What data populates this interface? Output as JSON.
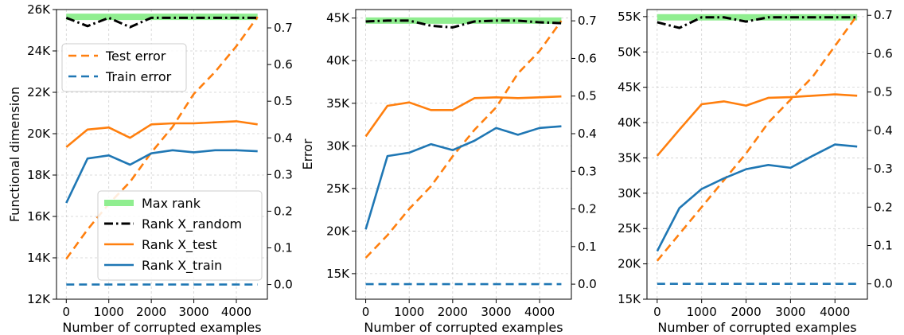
{
  "chart_data": [
    {
      "type": "line",
      "xlabel": "Number of corrupted examples",
      "ylabel": "Functional dimension",
      "ylabel_right": "Error",
      "x": [
        0,
        500,
        1000,
        1500,
        2000,
        2500,
        3000,
        3500,
        4000,
        4500
      ],
      "xticks": [
        0,
        1000,
        2000,
        3000,
        4000
      ],
      "ylim": [
        12000,
        26000
      ],
      "yticks": [
        12000,
        14000,
        16000,
        18000,
        20000,
        22000,
        24000,
        26000
      ],
      "ytick_labels": [
        "12K",
        "14K",
        "16K",
        "18K",
        "20K",
        "22K",
        "24K",
        "26K"
      ],
      "y2lim": [
        -0.04,
        0.75
      ],
      "y2ticks": [
        0.0,
        0.1,
        0.2,
        0.3,
        0.4,
        0.5,
        0.6,
        0.7
      ],
      "y2tick_labels": [
        "0.0",
        "0.1",
        "0.2",
        "0.3",
        "0.4",
        "0.5",
        "0.6",
        "0.7"
      ],
      "series": [
        {
          "name": "Max rank",
          "axis": "left",
          "style": "band",
          "color": "#90ee90",
          "values": [
            25650,
            25650,
            25650,
            25650,
            25650,
            25650,
            25650,
            25650,
            25650,
            25650
          ]
        },
        {
          "name": "Rank X_random",
          "axis": "left",
          "style": "dashdot",
          "color": "#000000",
          "values": [
            25600,
            25200,
            25600,
            25150,
            25600,
            25600,
            25600,
            25600,
            25600,
            25600
          ]
        },
        {
          "name": "Rank X_test",
          "axis": "left",
          "style": "solid",
          "color": "#ff7f0e",
          "values": [
            19350,
            20200,
            20300,
            19800,
            20450,
            20500,
            20500,
            20550,
            20600,
            20450
          ]
        },
        {
          "name": "Rank X_train",
          "axis": "left",
          "style": "solid",
          "color": "#1f77b4",
          "values": [
            16650,
            18800,
            18950,
            18500,
            19050,
            19200,
            19100,
            19200,
            19200,
            19150
          ]
        },
        {
          "name": "Test error",
          "axis": "right",
          "style": "dashed",
          "color": "#ff7f0e",
          "values": [
            0.07,
            0.15,
            0.22,
            0.28,
            0.36,
            0.43,
            0.52,
            0.58,
            0.65,
            0.73
          ]
        },
        {
          "name": "Train error",
          "axis": "right",
          "style": "dashed",
          "color": "#1f77b4",
          "values": [
            0.0,
            0.0,
            0.0,
            0.0,
            0.0,
            0.0,
            0.0,
            0.0,
            0.0,
            0.0
          ]
        }
      ],
      "legend_error": {
        "placement": "upper-left",
        "items": [
          "Test error",
          "Train error"
        ]
      },
      "legend_rank": {
        "placement": "lower-center",
        "items": [
          "Max rank",
          "Rank X_random",
          "Rank X_test",
          "Rank X_train"
        ]
      }
    },
    {
      "type": "line",
      "xlabel": "Number of corrupted examples",
      "ylabel": "",
      "ylabel_right": "",
      "x": [
        0,
        500,
        1000,
        1500,
        2000,
        2500,
        3000,
        3500,
        4000,
        4500
      ],
      "xticks": [
        0,
        1000,
        2000,
        3000,
        4000
      ],
      "ylim": [
        12000,
        46000
      ],
      "yticks": [
        15000,
        20000,
        25000,
        30000,
        35000,
        40000,
        45000
      ],
      "ytick_labels": [
        "15K",
        "20K",
        "25K",
        "30K",
        "35K",
        "40K",
        "45K"
      ],
      "y2lim": [
        -0.04,
        0.73
      ],
      "y2ticks": [
        0.0,
        0.1,
        0.2,
        0.3,
        0.4,
        0.5,
        0.6,
        0.7
      ],
      "y2tick_labels": [
        "0.0",
        "0.1",
        "0.2",
        "0.3",
        "0.4",
        "0.5",
        "0.6",
        "0.7"
      ],
      "series": [
        {
          "name": "Max rank",
          "axis": "left",
          "style": "band",
          "color": "#90ee90",
          "values": [
            44700,
            44700,
            44700,
            44700,
            44700,
            44700,
            44700,
            44700,
            44700,
            44700
          ]
        },
        {
          "name": "Rank X_random",
          "axis": "left",
          "style": "dashdot",
          "color": "#000000",
          "values": [
            44600,
            44700,
            44700,
            44100,
            43900,
            44600,
            44700,
            44700,
            44500,
            44400
          ]
        },
        {
          "name": "Rank X_test",
          "axis": "left",
          "style": "solid",
          "color": "#ff7f0e",
          "values": [
            31100,
            34700,
            35100,
            34200,
            34200,
            35600,
            35700,
            35600,
            35700,
            35800
          ]
        },
        {
          "name": "Rank X_train",
          "axis": "left",
          "style": "solid",
          "color": "#1f77b4",
          "values": [
            20200,
            28800,
            29200,
            30200,
            29500,
            30600,
            32100,
            31300,
            32100,
            32300
          ]
        },
        {
          "name": "Test error",
          "axis": "right",
          "style": "dashed",
          "color": "#ff7f0e",
          "values": [
            0.07,
            0.13,
            0.2,
            0.26,
            0.34,
            0.41,
            0.47,
            0.56,
            0.62,
            0.7
          ]
        },
        {
          "name": "Train error",
          "axis": "right",
          "style": "dashed",
          "color": "#1f77b4",
          "values": [
            0.0,
            0.0,
            0.0,
            0.0,
            0.0,
            0.0,
            0.0,
            0.0,
            0.0,
            0.0
          ]
        }
      ]
    },
    {
      "type": "line",
      "xlabel": "Number of corrupted examples",
      "ylabel": "",
      "ylabel_right": "",
      "x": [
        0,
        500,
        1000,
        1500,
        2000,
        2500,
        3000,
        3500,
        4000,
        4500
      ],
      "xticks": [
        0,
        1000,
        2000,
        3000,
        4000
      ],
      "ylim": [
        15000,
        56000
      ],
      "yticks": [
        15000,
        20000,
        25000,
        30000,
        35000,
        40000,
        45000,
        50000,
        55000
      ],
      "ytick_labels": [
        "15K",
        "20K",
        "25K",
        "30K",
        "35K",
        "40K",
        "45K",
        "50K",
        "55K"
      ],
      "y2lim": [
        -0.04,
        0.715
      ],
      "y2ticks": [
        0.0,
        0.1,
        0.2,
        0.3,
        0.4,
        0.5,
        0.6,
        0.7
      ],
      "y2tick_labels": [
        "0.0",
        "0.1",
        "0.2",
        "0.3",
        "0.4",
        "0.5",
        "0.6",
        "0.7"
      ],
      "series": [
        {
          "name": "Max rank",
          "axis": "left",
          "style": "band",
          "color": "#90ee90",
          "values": [
            54900,
            54900,
            54900,
            54900,
            54900,
            54900,
            54900,
            54900,
            54900,
            54900
          ]
        },
        {
          "name": "Rank X_random",
          "axis": "left",
          "style": "dashdot",
          "color": "#000000",
          "values": [
            54200,
            53400,
            54900,
            54900,
            54300,
            54900,
            54900,
            54900,
            54900,
            54900
          ]
        },
        {
          "name": "Rank X_test",
          "axis": "left",
          "style": "solid",
          "color": "#ff7f0e",
          "values": [
            35300,
            39000,
            42600,
            43000,
            42400,
            43500,
            43600,
            43800,
            44000,
            43800
          ]
        },
        {
          "name": "Rank X_train",
          "axis": "left",
          "style": "solid",
          "color": "#1f77b4",
          "values": [
            21800,
            27900,
            30600,
            32100,
            33400,
            34000,
            33600,
            35300,
            36900,
            36600
          ]
        },
        {
          "name": "Test error",
          "axis": "right",
          "style": "dashed",
          "color": "#ff7f0e",
          "values": [
            0.06,
            0.13,
            0.2,
            0.27,
            0.34,
            0.42,
            0.48,
            0.54,
            0.62,
            0.7
          ]
        },
        {
          "name": "Train error",
          "axis": "right",
          "style": "dashed",
          "color": "#1f77b4",
          "values": [
            0.0,
            0.0,
            0.0,
            0.0,
            0.0,
            0.0,
            0.0,
            0.0,
            0.0,
            0.0
          ]
        }
      ]
    }
  ]
}
